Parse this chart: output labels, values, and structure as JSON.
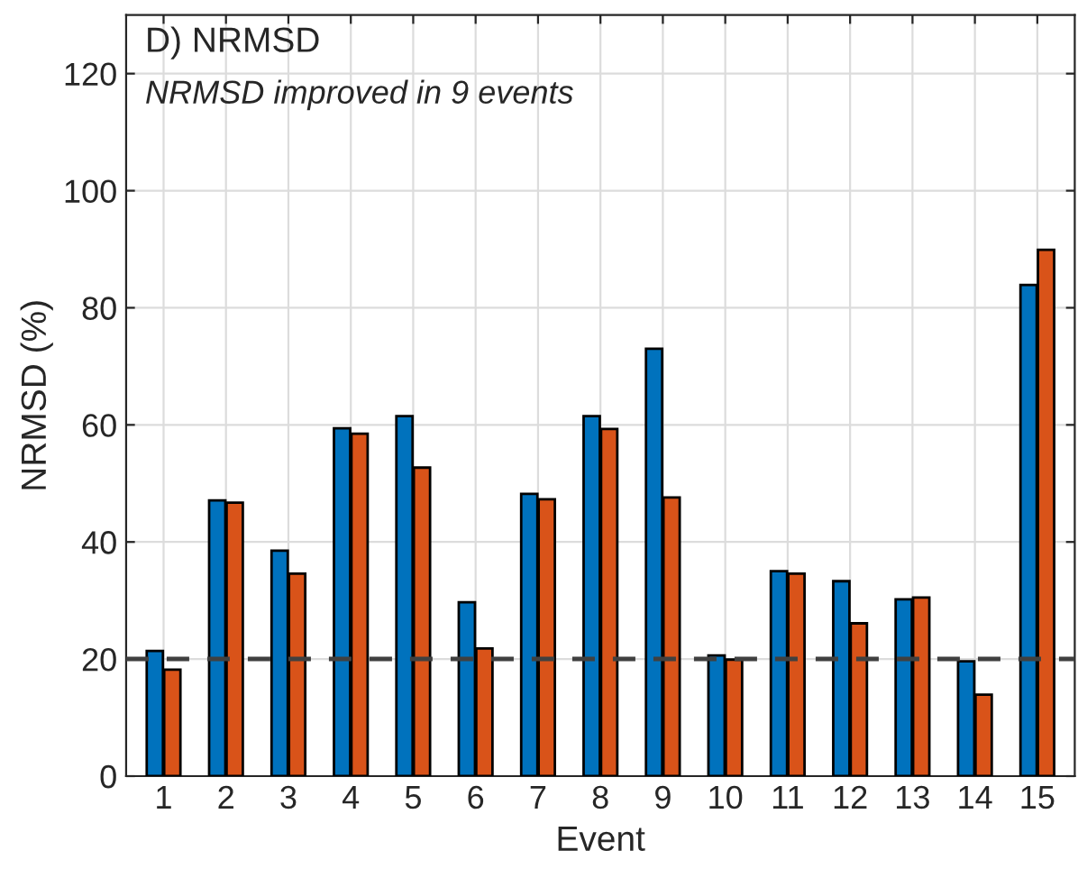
{
  "chart_data": {
    "type": "bar",
    "title": "D) NRMSD",
    "subtitle": "NRMSD improved in 9 events",
    "xlabel": "Event",
    "ylabel": "NRMSD (%)",
    "categories": [
      "1",
      "2",
      "3",
      "4",
      "5",
      "6",
      "7",
      "8",
      "9",
      "10",
      "11",
      "12",
      "13",
      "14",
      "15"
    ],
    "series": [
      {
        "color": "#0072bd",
        "values": [
          21.4,
          47.1,
          38.5,
          59.4,
          61.5,
          29.7,
          48.2,
          61.5,
          73.0,
          20.6,
          35.0,
          33.3,
          30.2,
          19.6,
          83.9
        ]
      },
      {
        "color": "#d95319",
        "values": [
          18.2,
          46.7,
          34.6,
          58.5,
          52.7,
          21.8,
          47.3,
          59.3,
          47.6,
          19.9,
          34.6,
          26.1,
          30.5,
          13.9,
          89.9
        ]
      }
    ],
    "ylim": [
      0,
      130
    ],
    "yticks": [
      0,
      20,
      40,
      60,
      80,
      100,
      120
    ],
    "grid": true,
    "ref_lines": [
      {
        "axis": "y",
        "value": 20,
        "color": "#404040",
        "line_style": "dashed"
      }
    ]
  }
}
